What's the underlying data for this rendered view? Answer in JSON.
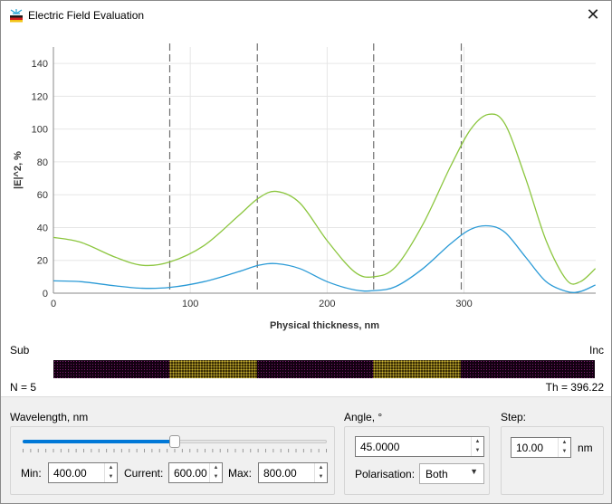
{
  "window": {
    "title": "Electric Field Evaluation",
    "close_symbol": "✕"
  },
  "chart_data": {
    "type": "line",
    "xlabel": "Physical thickness, nm",
    "ylabel": "|E|^2, %",
    "xlim": [
      0,
      396.22
    ],
    "ylim": [
      0,
      150
    ],
    "x_ticks": [
      0,
      100,
      200,
      300
    ],
    "y_ticks": [
      0,
      20,
      40,
      60,
      80,
      100,
      120,
      140
    ],
    "grid": true,
    "interfaces_nm": [
      85,
      149,
      234,
      298
    ],
    "series": [
      {
        "color": "#8cc63f",
        "x": [
          0,
          20,
          45,
          65,
          85,
          110,
          135,
          150,
          163,
          180,
          200,
          220,
          234,
          250,
          270,
          290,
          305,
          318,
          330,
          345,
          360,
          375,
          385,
          396
        ],
        "values": [
          34,
          31,
          22,
          17,
          19,
          29,
          47,
          58,
          62,
          55,
          32,
          13,
          10,
          16,
          42,
          77,
          100,
          109,
          103,
          70,
          32,
          8,
          7,
          15
        ]
      },
      {
        "color": "#2a9ad6",
        "x": [
          0,
          20,
          45,
          65,
          85,
          110,
          135,
          150,
          163,
          180,
          200,
          220,
          234,
          250,
          270,
          290,
          305,
          318,
          330,
          345,
          360,
          375,
          385,
          396
        ],
        "values": [
          7.5,
          7,
          4.5,
          3,
          3.5,
          7,
          13,
          17,
          18,
          15,
          7,
          2,
          1.5,
          4,
          15,
          30,
          39,
          41,
          37,
          22,
          7,
          1,
          1,
          5
        ]
      }
    ]
  },
  "structure": {
    "sub_label": "Sub",
    "inc_label": "Inc",
    "layer_count": "N = 5",
    "total_thickness": "Th = 396.22",
    "layers": [
      {
        "material": "dark",
        "thickness": 85
      },
      {
        "material": "gold",
        "thickness": 64
      },
      {
        "material": "dark",
        "thickness": 85
      },
      {
        "material": "gold",
        "thickness": 64
      },
      {
        "material": "dark",
        "thickness": 98.22
      }
    ]
  },
  "wavelength": {
    "group_label": "Wavelength, nm",
    "slider_fraction": 0.5,
    "min_label": "Min:",
    "min_value": "400.00",
    "current_label": "Current:",
    "current_value": "600.00",
    "max_label": "Max:",
    "max_value": "800.00"
  },
  "angle": {
    "group_label": "Angle, °",
    "value": "45.0000",
    "polarisation_label": "Polarisation:",
    "polarisation_value": "Both"
  },
  "step": {
    "group_label": "Step:",
    "value": "10.00",
    "unit": "nm"
  },
  "colors": {
    "accent": "#0078d7",
    "series_a": "#8cc63f",
    "series_b": "#2a9ad6"
  }
}
